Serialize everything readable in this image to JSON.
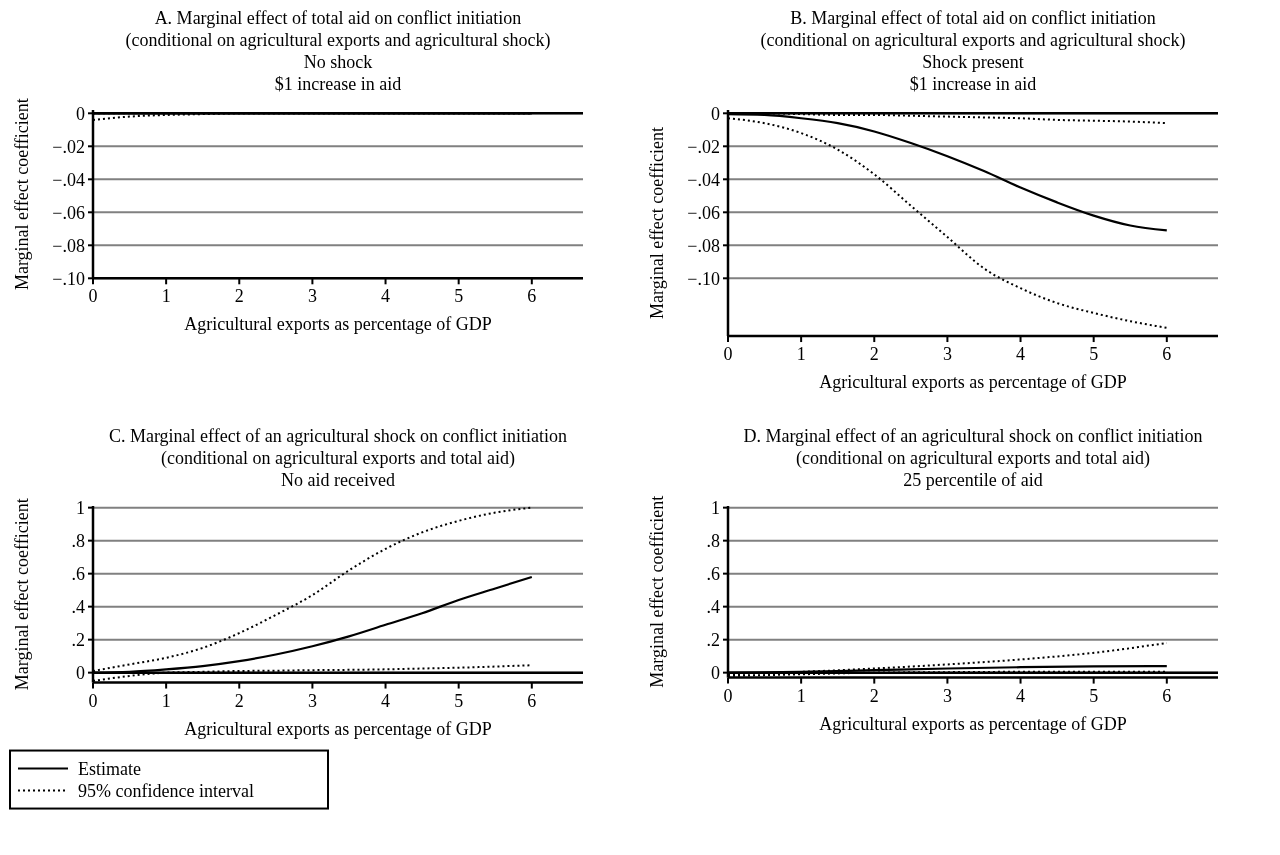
{
  "chart_data": [
    {
      "type": "line",
      "title": "A. Marginal effect of total aid on conflict initiation",
      "subtitle": "(conditional on agricultural exports and agricultural shock)\nNo shock\n$1 increase in aid",
      "xlabel": "Agricultural exports as percentage of GDP",
      "ylabel": "Marginal effect coefficient",
      "x": [
        0,
        0.5,
        1,
        1.5,
        2,
        3,
        4,
        5,
        6
      ],
      "xlim": [
        0,
        6.7
      ],
      "xticks": [
        0,
        1,
        2,
        3,
        4,
        5,
        6
      ],
      "ylim": [
        -0.1,
        0.002
      ],
      "yticks": [
        {
          "value": 0,
          "label": "0"
        },
        {
          "value": -0.02,
          "label": "−.02"
        },
        {
          "value": -0.04,
          "label": "−.04"
        },
        {
          "value": -0.06,
          "label": "−.06"
        },
        {
          "value": -0.08,
          "label": "−.08"
        },
        {
          "value": -0.1,
          "label": "−.10"
        }
      ],
      "grid": "y",
      "ref_lines": [
        {
          "axis": "y",
          "value": 0,
          "color": "#000000"
        }
      ],
      "series": [
        {
          "color": "#000000",
          "line_style": "solid",
          "values": [
            0,
            0,
            0,
            0,
            0,
            0,
            0,
            0,
            0
          ]
        },
        {
          "color": "#000000",
          "line_style": "dotted",
          "values": [
            0,
            0,
            0,
            0,
            0,
            0,
            0,
            0,
            0
          ]
        },
        {
          "color": "#000000",
          "line_style": "dotted",
          "values": [
            -0.004,
            -0.002,
            -0.001,
            -0.0005,
            0,
            0,
            0,
            0,
            0
          ]
        }
      ]
    },
    {
      "type": "line",
      "title": "B. Marginal effect of total aid on conflict initiation",
      "subtitle": "(conditional on agricultural exports and agricultural shock)\nShock present\n$1 increase in aid",
      "xlabel": "Agricultural exports as percentage of GDP",
      "ylabel": "Marginal effect coefficient",
      "x": [
        0,
        0.5,
        1,
        1.5,
        2,
        2.5,
        3,
        3.5,
        4,
        4.5,
        5,
        5.5,
        6
      ],
      "xlim": [
        0,
        6.7
      ],
      "xticks": [
        0,
        1,
        2,
        3,
        4,
        5,
        6
      ],
      "ylim": [
        -0.135,
        0.002
      ],
      "yticks": [
        {
          "value": 0,
          "label": "0"
        },
        {
          "value": -0.02,
          "label": "−.02"
        },
        {
          "value": -0.04,
          "label": "−.04"
        },
        {
          "value": -0.06,
          "label": "−.06"
        },
        {
          "value": -0.08,
          "label": "−.08"
        },
        {
          "value": -0.1,
          "label": "−.10"
        }
      ],
      "grid": "y",
      "ref_lines": [
        {
          "axis": "y",
          "value": 0,
          "color": "#000000"
        }
      ],
      "series": [
        {
          "color": "#000000",
          "line_style": "solid",
          "values": [
            -0.0005,
            -0.001,
            -0.003,
            -0.006,
            -0.011,
            -0.018,
            -0.026,
            -0.035,
            -0.045,
            -0.054,
            -0.062,
            -0.068,
            -0.071
          ]
        },
        {
          "color": "#000000",
          "line_style": "dotted",
          "values": [
            0,
            0,
            -0.0005,
            -0.001,
            -0.001,
            -0.0015,
            -0.002,
            -0.0025,
            -0.003,
            -0.004,
            -0.0045,
            -0.005,
            -0.006
          ]
        },
        {
          "color": "#000000",
          "line_style": "dotted",
          "values": [
            -0.003,
            -0.006,
            -0.012,
            -0.022,
            -0.037,
            -0.056,
            -0.075,
            -0.094,
            -0.106,
            -0.115,
            -0.121,
            -0.126,
            -0.13
          ]
        }
      ]
    },
    {
      "type": "line",
      "title": "C. Marginal effect of an agricultural shock on conflict initiation",
      "subtitle": "(conditional on agricultural exports and total aid)\nNo aid received",
      "xlabel": "Agricultural exports as percentage of GDP",
      "ylabel": "Marginal effect coefficient",
      "x": [
        0,
        0.5,
        1,
        1.5,
        2,
        2.5,
        3,
        3.5,
        4,
        4.5,
        5,
        5.5,
        6
      ],
      "xlim": [
        0,
        6.7
      ],
      "xticks": [
        0,
        1,
        2,
        3,
        4,
        5,
        6
      ],
      "ylim": [
        -0.06,
        1.01
      ],
      "yticks": [
        {
          "value": 0,
          "label": "0"
        },
        {
          "value": 0.2,
          "label": ".2"
        },
        {
          "value": 0.4,
          "label": ".4"
        },
        {
          "value": 0.6,
          "label": ".6"
        },
        {
          "value": 0.8,
          "label": ".8"
        },
        {
          "value": 1,
          "label": "1"
        }
      ],
      "grid": "y",
      "ref_lines": [
        {
          "axis": "y",
          "value": 0,
          "color": "#000000"
        }
      ],
      "legend": "bottom left",
      "series": [
        {
          "name": "Estimate",
          "color": "#000000",
          "line_style": "solid",
          "values": [
            0,
            0.005,
            0.02,
            0.04,
            0.07,
            0.11,
            0.16,
            0.22,
            0.29,
            0.36,
            0.44,
            0.51,
            0.58
          ]
        },
        {
          "name": "95% confidence interval",
          "color": "#000000",
          "line_style": "dotted",
          "values": [
            0.01,
            0.05,
            0.09,
            0.15,
            0.24,
            0.35,
            0.47,
            0.62,
            0.75,
            0.85,
            0.92,
            0.97,
            1.0
          ]
        },
        {
          "color": "#000000",
          "line_style": "dotted",
          "values": [
            -0.05,
            -0.02,
            0,
            0.005,
            0.01,
            0.012,
            0.015,
            0.017,
            0.02,
            0.025,
            0.03,
            0.037,
            0.045
          ]
        }
      ]
    },
    {
      "type": "line",
      "title": "D. Marginal effect of an agricultural shock on conflict initiation",
      "subtitle": "(conditional on agricultural exports and total aid)\n25 percentile of aid",
      "xlabel": "Agricultural exports as percentage of GDP",
      "ylabel": "Marginal effect coefficient",
      "x": [
        0,
        1,
        2,
        3,
        4,
        5,
        6
      ],
      "xlim": [
        0,
        6.7
      ],
      "xticks": [
        0,
        1,
        2,
        3,
        4,
        5,
        6
      ],
      "ylim": [
        -0.03,
        1.01
      ],
      "yticks": [
        {
          "value": 0,
          "label": "0"
        },
        {
          "value": 0.2,
          "label": ".2"
        },
        {
          "value": 0.4,
          "label": ".4"
        },
        {
          "value": 0.6,
          "label": ".6"
        },
        {
          "value": 0.8,
          "label": ".8"
        },
        {
          "value": 1,
          "label": "1"
        }
      ],
      "grid": "y",
      "ref_lines": [
        {
          "axis": "y",
          "value": 0,
          "color": "#000000"
        }
      ],
      "series": [
        {
          "color": "#000000",
          "line_style": "solid",
          "values": [
            0,
            0.005,
            0.015,
            0.025,
            0.033,
            0.038,
            0.04
          ]
        },
        {
          "color": "#000000",
          "line_style": "dotted",
          "values": [
            -0.01,
            0.005,
            0.025,
            0.05,
            0.08,
            0.12,
            0.18
          ]
        },
        {
          "color": "#000000",
          "line_style": "dotted",
          "values": [
            -0.02,
            -0.01,
            0,
            0.003,
            0.005,
            0.005,
            0.005
          ]
        }
      ]
    }
  ]
}
